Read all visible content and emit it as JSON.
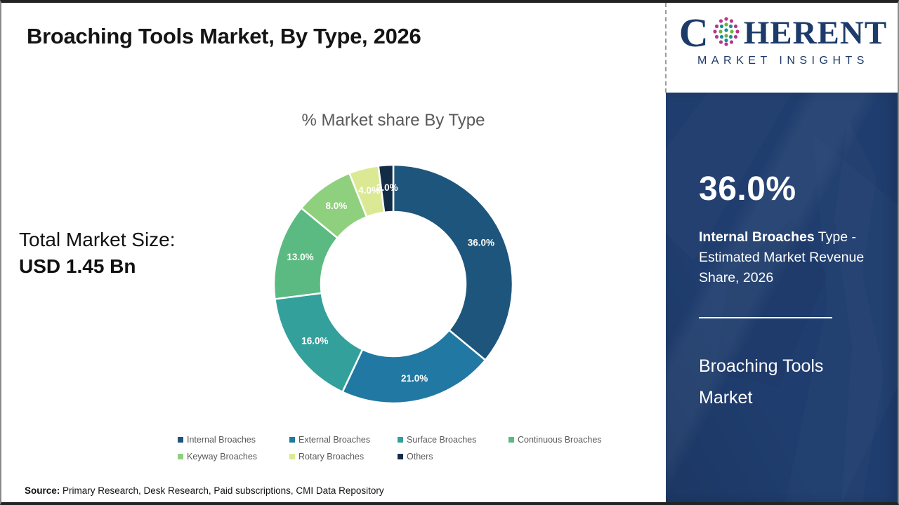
{
  "page": {
    "title": "Broaching Tools Market, By Type, 2026",
    "source_label": "Source:",
    "source_text": " Primary Research, Desk Research, Paid subscriptions, CMI Data Repository"
  },
  "logo": {
    "prefix": "C",
    "suffix": "HERENT",
    "subtitle": "MARKET INSIGHTS",
    "navy": "#1C3B6A",
    "dot_teal": "#12919B",
    "dot_green": "#6CB33F",
    "dot_pink": "#B5378C",
    "globe_icon": "dotted-globe"
  },
  "left_stats": {
    "label": "Total Market Size:",
    "value": "USD 1.45 Bn"
  },
  "chart_data": {
    "type": "pie",
    "variant": "donut",
    "title": "% Market share By Type",
    "categories": [
      "Internal Broaches",
      "External Broaches",
      "Surface Broaches",
      "Continuous Broaches",
      "Keyway Broaches",
      "Rotary Broaches",
      "Others"
    ],
    "values": [
      36.0,
      21.0,
      16.0,
      13.0,
      8.0,
      4.0,
      2.0
    ],
    "labels": [
      "36.0%",
      "21.0%",
      "16.0%",
      "13.0%",
      "8.0%",
      "4.0%",
      "2.0%"
    ],
    "colors": [
      "#1e557c",
      "#2178a2",
      "#33a09b",
      "#5bba81",
      "#8fd07e",
      "#dbe994",
      "#132c46"
    ],
    "legend_position": "bottom",
    "start_angle_deg": 0,
    "direction": "clockwise"
  },
  "side_panel": {
    "bg": "#1F3D6E",
    "headline": "36.0%",
    "bold_text": "Internal Broaches",
    "desc_rest": " Type - Estimated Market Revenue Share, 2026",
    "footer_title": "Broaching Tools Market"
  }
}
